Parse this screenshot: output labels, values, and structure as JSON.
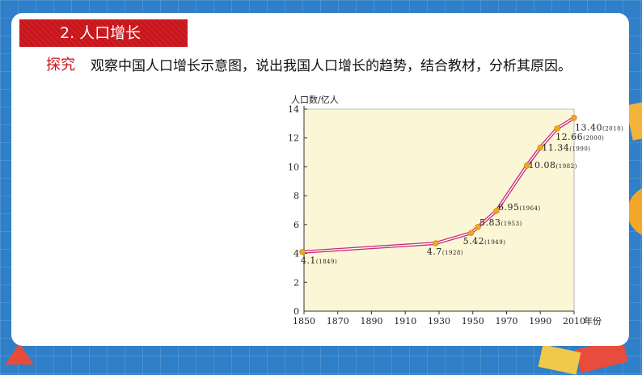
{
  "header": {
    "title": "2. 人口增长"
  },
  "prompt": {
    "tag": "探究",
    "text": "观察中国人口增长示意图，说出我国人口增长的趋势，结合教材，分析其原因。"
  },
  "colors": {
    "background": "#2f7fc9",
    "banner": "#c8151b",
    "plot_bg": "#fbf6d5",
    "line_outer": "#cc2a79",
    "marker": "#f1a81f"
  },
  "chart_data": {
    "type": "line",
    "ylabel": "人口数/亿人",
    "xlabel": "年份",
    "xlim": [
      1850,
      2010
    ],
    "ylim": [
      0,
      14
    ],
    "xticks": [
      "1850",
      "1870",
      "1890",
      "1910",
      "1930",
      "1950",
      "1970",
      "1990",
      "2010"
    ],
    "yticks": [
      "0",
      "2",
      "4",
      "6",
      "8",
      "10",
      "12",
      "14"
    ],
    "points": [
      {
        "x": 1849,
        "y": 4.1,
        "label": "4.1",
        "year_label": "(1849)"
      },
      {
        "x": 1928,
        "y": 4.7,
        "label": "4.7",
        "year_label": "(1928)"
      },
      {
        "x": 1949,
        "y": 5.42,
        "label": "5.42",
        "year_label": "(1949)"
      },
      {
        "x": 1953,
        "y": 5.83,
        "label": "5.83",
        "year_label": "(1953)"
      },
      {
        "x": 1964,
        "y": 6.95,
        "label": "6.95",
        "year_label": "(1964)"
      },
      {
        "x": 1982,
        "y": 10.08,
        "label": "10.08",
        "year_label": "(1982)"
      },
      {
        "x": 1990,
        "y": 11.34,
        "label": "11.34",
        "year_label": "(1990)"
      },
      {
        "x": 2000,
        "y": 12.66,
        "label": "12.66",
        "year_label": "(2000)"
      },
      {
        "x": 2010,
        "y": 13.4,
        "label": "13.40",
        "year_label": "(2010)"
      }
    ]
  }
}
